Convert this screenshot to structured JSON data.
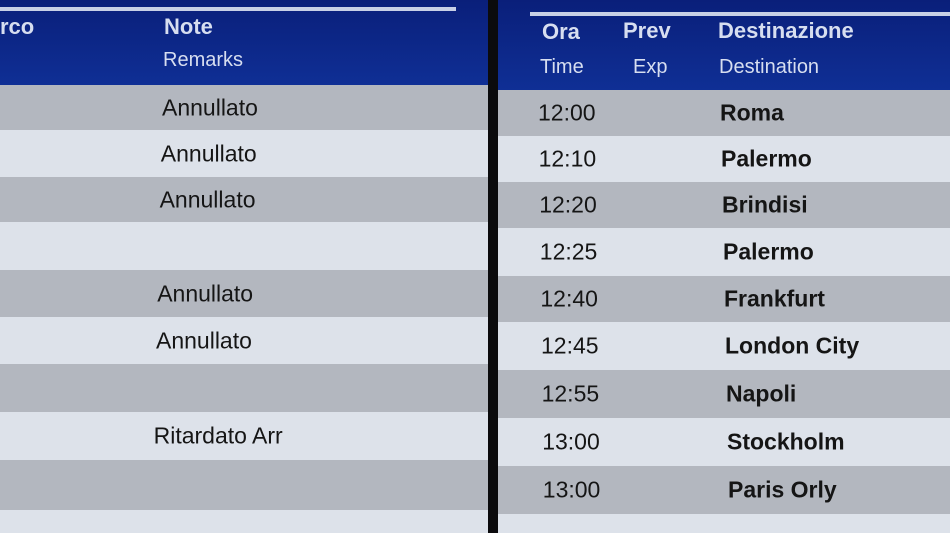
{
  "left_board": {
    "headers": {
      "gate_partial": "rco",
      "note": "Note",
      "remarks": "Remarks"
    },
    "remarks": [
      "Annullato",
      "Annullato",
      "Annullato",
      "",
      "Annullato",
      "Annullato",
      "",
      "Ritardato Arr",
      "",
      ""
    ]
  },
  "right_board": {
    "headers": {
      "time_it": "Ora",
      "exp_it": "Prev",
      "dest_it": "Destinazione",
      "time_en": "Time",
      "exp_en": "Exp",
      "dest_en": "Destination"
    },
    "rows": [
      {
        "time": "12:00",
        "dest": "Roma"
      },
      {
        "time": "12:10",
        "dest": "Palermo"
      },
      {
        "time": "12:20",
        "dest": "Brindisi"
      },
      {
        "time": "12:25",
        "dest": "Palermo"
      },
      {
        "time": "12:40",
        "dest": "Frankfurt"
      },
      {
        "time": "12:45",
        "dest": "London City"
      },
      {
        "time": "12:55",
        "dest": "Napoli"
      },
      {
        "time": "13:00",
        "dest": "Stockholm"
      },
      {
        "time": "13:00",
        "dest": "Paris Orly"
      },
      {
        "time": "",
        "dest": ""
      }
    ]
  },
  "colors": {
    "header_blue": "#0f2f95",
    "row_dark": "#b3b7bf",
    "row_light": "#dde2ea"
  }
}
